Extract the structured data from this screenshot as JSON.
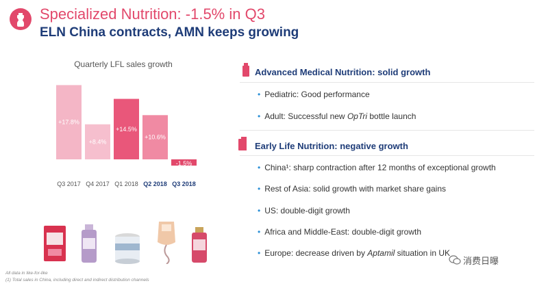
{
  "header": {
    "title": "Specialized Nutrition: -1.5% in Q3",
    "subtitle": "ELN China contracts, AMN keeps growing"
  },
  "chart_data": {
    "type": "bar",
    "title": "Quarterly LFL sales growth",
    "categories": [
      "Q3 2017",
      "Q4 2017",
      "Q1 2018",
      "Q2 2018",
      "Q3 2018"
    ],
    "values": [
      17.8,
      8.4,
      14.5,
      10.6,
      -1.5
    ],
    "data_labels": [
      "+17.8%",
      "+8.4%",
      "+14.5%",
      "+10.6%",
      "-1.5%"
    ],
    "bold_categories": [
      "Q2 2018",
      "Q3 2018"
    ],
    "ylim": [
      -2,
      18
    ],
    "grid": false,
    "colors": [
      "#f4b6c6",
      "#f6bfce",
      "#e9577a",
      "#f08aa3",
      "#e2486b"
    ]
  },
  "products": [
    {
      "name": "infant-formula-box-icon"
    },
    {
      "name": "fortimel-bottle-icon"
    },
    {
      "name": "nutricia-tin-icon"
    },
    {
      "name": "enteral-feeding-bag-icon"
    },
    {
      "name": "nutrition-bottle-icon"
    }
  ],
  "sections": {
    "amn": {
      "title": "Advanced Medical Nutrition: solid growth",
      "bullets": [
        {
          "parts": [
            "Pediatric: Good performance"
          ]
        },
        {
          "parts": [
            "Adult: Successful new ",
            "OpTri",
            " bottle launch"
          ]
        }
      ]
    },
    "eln": {
      "title": "Early Life Nutrition: negative growth",
      "bullets": [
        {
          "parts": [
            "China¹: sharp contraction after 12 months of exceptional growth"
          ]
        },
        {
          "parts": [
            "Rest of Asia: solid growth with market share gains"
          ]
        },
        {
          "parts": [
            "US: double-digit growth"
          ]
        },
        {
          "parts": [
            "Africa and Middle-East: double-digit growth"
          ]
        },
        {
          "parts": [
            "Europe: decrease driven by ",
            "Aptamil",
            " situation in UK"
          ]
        }
      ]
    }
  },
  "footnotes": {
    "line1": "All data in like-for-like",
    "line2": "(1) Total sales in China, including direct and indirect distribution channels"
  },
  "watermark": {
    "text": "消费日曝"
  },
  "colors": {
    "accent": "#e2486b",
    "navy": "#1e3c78",
    "bullet": "#2a8fd6"
  }
}
